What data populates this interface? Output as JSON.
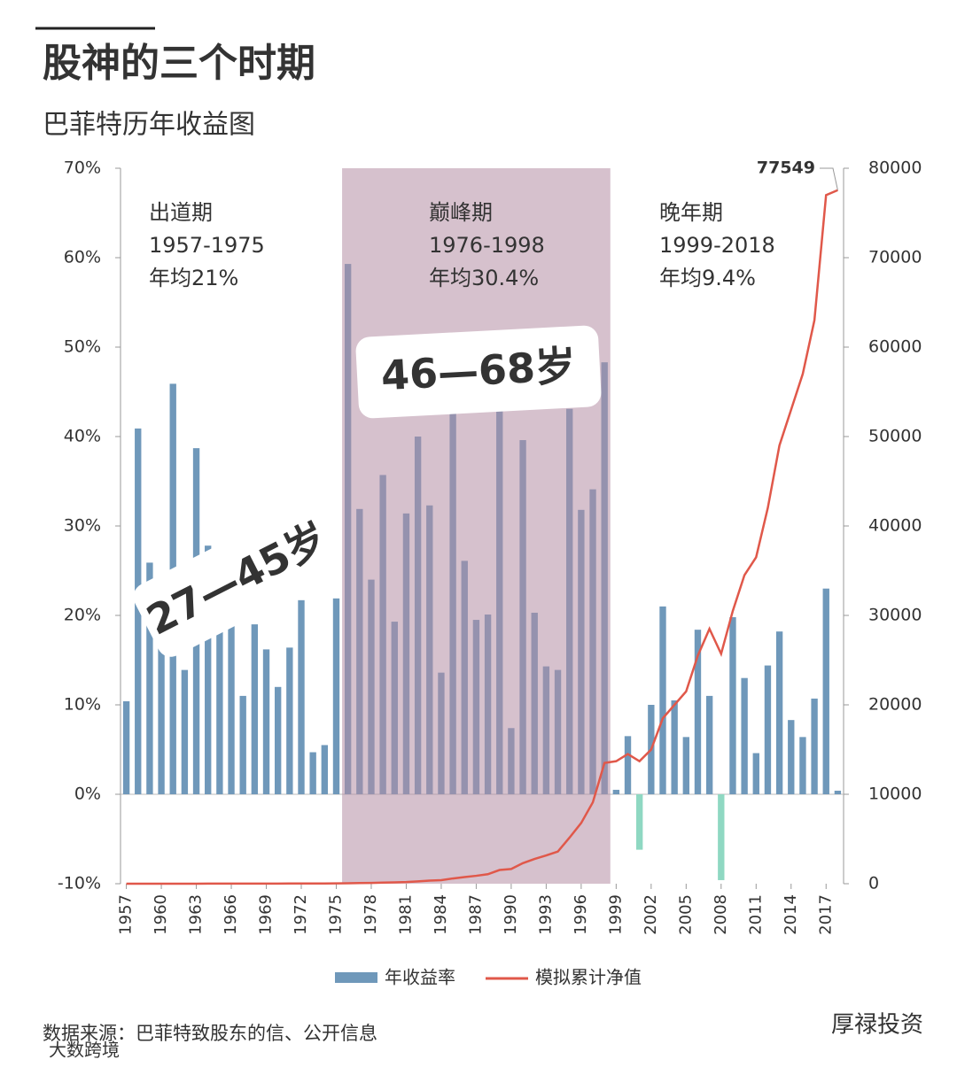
{
  "chart_data": {
    "type": "bar-line",
    "title": "股神的三个时期",
    "subtitle": "巴菲特历年收益图",
    "x": [
      1957,
      1958,
      1959,
      1960,
      1961,
      1962,
      1963,
      1964,
      1965,
      1966,
      1967,
      1968,
      1969,
      1970,
      1971,
      1972,
      1973,
      1974,
      1975,
      1976,
      1977,
      1978,
      1979,
      1980,
      1981,
      1982,
      1983,
      1984,
      1985,
      1986,
      1987,
      1988,
      1989,
      1990,
      1991,
      1992,
      1993,
      1994,
      1995,
      1996,
      1997,
      1998,
      1999,
      2000,
      2001,
      2002,
      2003,
      2004,
      2005,
      2006,
      2007,
      2008,
      2009,
      2010,
      2011,
      2012,
      2013,
      2014,
      2015,
      2016,
      2017,
      2018
    ],
    "xlim": [
      1956.5,
      2018.5
    ],
    "xticks": [
      1957,
      1960,
      1963,
      1966,
      1969,
      1972,
      1975,
      1978,
      1981,
      1984,
      1987,
      1990,
      1993,
      1996,
      1999,
      2002,
      2005,
      2008,
      2011,
      2014,
      2017
    ],
    "ylim": [
      -10,
      70
    ],
    "yticks": [
      {
        "value": -10,
        "label": "-10%"
      },
      {
        "value": 0,
        "label": "0%"
      },
      {
        "value": 10,
        "label": "10%"
      },
      {
        "value": 20,
        "label": "20%"
      },
      {
        "value": 30,
        "label": "30%"
      },
      {
        "value": 40,
        "label": "40%"
      },
      {
        "value": 50,
        "label": "50%"
      },
      {
        "value": 60,
        "label": "60%"
      },
      {
        "value": 70,
        "label": "70%"
      }
    ],
    "y2lim": [
      0,
      80000
    ],
    "y2ticks": [
      0,
      10000,
      20000,
      30000,
      40000,
      50000,
      60000,
      70000,
      80000
    ],
    "series": [
      {
        "name": "年收益率",
        "type": "bar",
        "color": "#6f98ba",
        "negative_color": "#8fd8c2",
        "values": [
          10.4,
          40.9,
          25.9,
          22.8,
          45.9,
          13.9,
          38.7,
          27.8,
          23.8,
          20.3,
          11.0,
          19.0,
          16.2,
          12.0,
          16.4,
          21.7,
          4.7,
          5.5,
          21.9,
          59.3,
          31.9,
          24.0,
          35.7,
          19.3,
          31.4,
          40.0,
          32.3,
          13.6,
          48.2,
          26.1,
          19.5,
          20.1,
          44.4,
          7.4,
          39.6,
          20.3,
          14.3,
          13.9,
          43.1,
          31.8,
          34.1,
          48.3,
          0.5,
          6.5,
          -6.2,
          10.0,
          21.0,
          10.5,
          6.4,
          18.4,
          11.0,
          -9.6,
          19.8,
          13.0,
          4.6,
          14.4,
          18.2,
          8.3,
          6.4,
          10.7,
          23.0,
          0.4
        ]
      },
      {
        "name": "模拟累计净值",
        "type": "line",
        "axis": "y2",
        "color": "#e0584a",
        "values": [
          1,
          2,
          2,
          3,
          4,
          4,
          6,
          8,
          9,
          11,
          12,
          14,
          16,
          18,
          21,
          25,
          27,
          28,
          34,
          54,
          71,
          88,
          120,
          143,
          188,
          264,
          349,
          396,
          587,
          740,
          884,
          1061,
          1533,
          1646,
          2298,
          2765,
          3160,
          3599,
          5150,
          6788,
          9103,
          13500,
          13700,
          14500,
          13700,
          15000,
          18500,
          20000,
          21500,
          25500,
          28500,
          25700,
          30500,
          34500,
          36500,
          42000,
          49000,
          53000,
          57000,
          63000,
          77000,
          77549
        ]
      }
    ],
    "shaded": [
      1976,
      1998
    ],
    "shaded_color": "#b48ea4",
    "periods": [
      {
        "name": "出道期",
        "range": "1957-1975",
        "avg": "年均21%"
      },
      {
        "name": "巅峰期",
        "range": "1976-1998",
        "avg": "年均30.4%"
      },
      {
        "name": "晚年期",
        "range": "1999-2018",
        "avg": "年均9.4%"
      }
    ],
    "end_label": "77549",
    "stickers": [
      "27—45岁",
      "46—68岁"
    ],
    "source": "数据来源：巴菲特致股东的信、公开信息",
    "watermarks": [
      "厚禄投资",
      "大数跨境"
    ]
  }
}
